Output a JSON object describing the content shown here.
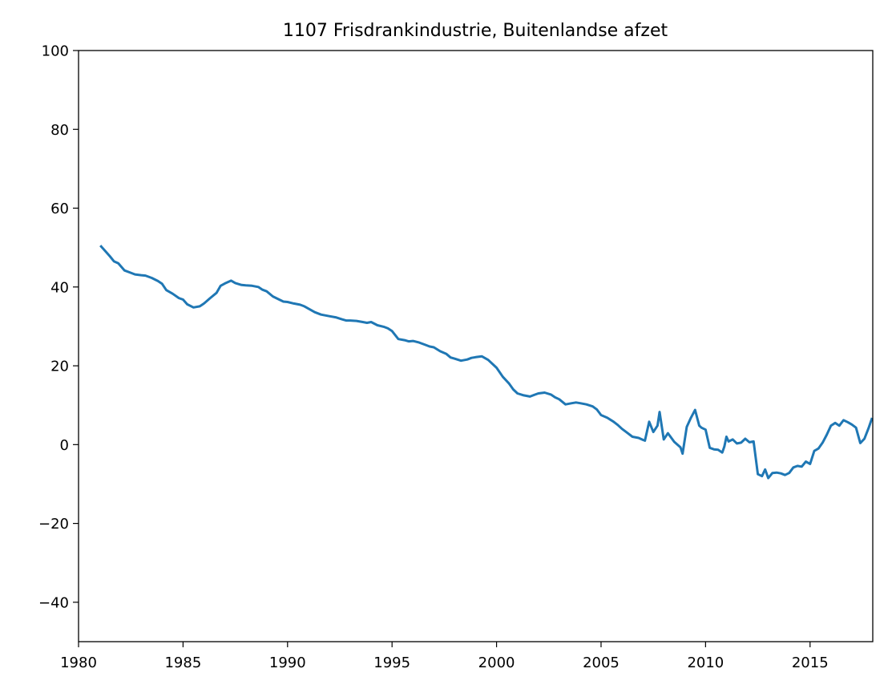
{
  "chart_data": {
    "type": "line",
    "title": "1107 Frisdrankindustrie, Buitenlandse afzet",
    "xlabel": "",
    "ylabel": "",
    "xlim": [
      1980,
      2018
    ],
    "ylim": [
      -50,
      100
    ],
    "xticks": [
      1980,
      1985,
      1990,
      1995,
      2000,
      2005,
      2010,
      2015
    ],
    "yticks": [
      100,
      80,
      60,
      40,
      20,
      0,
      -20,
      -40
    ],
    "ytick_labels": [
      "100",
      "80",
      "60",
      "40",
      "20",
      "0",
      "−20",
      "−40"
    ],
    "grid": false,
    "legend": "none",
    "series_color": "#1f77b4",
    "series": [
      {
        "x": [
          1981.08,
          1981.3,
          1981.5,
          1981.7,
          1981.9,
          1982.2,
          1982.5,
          1982.7,
          1983.0,
          1983.2,
          1983.5,
          1983.8,
          1984.0,
          1984.2,
          1984.5,
          1984.8,
          1985.0,
          1985.2,
          1985.5,
          1985.8,
          1986.0,
          1986.3,
          1986.6,
          1986.8,
          1987.0,
          1987.3,
          1987.5,
          1987.8,
          1988.0,
          1988.3,
          1988.6,
          1988.8,
          1989.0,
          1989.3,
          1989.6,
          1989.8,
          1990.0,
          1990.3,
          1990.6,
          1990.8,
          1991.0,
          1991.3,
          1991.6,
          1991.8,
          1992.0,
          1992.3,
          1992.6,
          1992.8,
          1993.0,
          1993.3,
          1993.6,
          1993.8,
          1994.0,
          1994.3,
          1994.6,
          1994.8,
          1995.0,
          1995.3,
          1995.6,
          1995.8,
          1996.0,
          1996.3,
          1996.6,
          1996.8,
          1997.0,
          1997.3,
          1997.6,
          1997.8,
          1998.0,
          1998.3,
          1998.6,
          1998.8,
          1999.0,
          1999.3,
          1999.6,
          1999.8,
          2000.0,
          2000.3,
          2000.6,
          2000.8,
          2001.0,
          2001.3,
          2001.6,
          2001.8,
          2002.0,
          2002.3,
          2002.6,
          2002.8,
          2003.0,
          2003.3,
          2003.6,
          2003.8,
          2004.0,
          2004.3,
          2004.6,
          2004.8,
          2005.0,
          2005.3,
          2005.6,
          2005.8,
          2006.0,
          2006.2,
          2006.5,
          2006.8,
          2007.0,
          2007.1,
          2007.3,
          2007.5,
          2007.7,
          2007.8,
          2008.0,
          2008.2,
          2008.5,
          2008.8,
          2008.9,
          2009.1,
          2009.3,
          2009.5,
          2009.7,
          2009.8,
          2010.0,
          2010.2,
          2010.4,
          2010.6,
          2010.8,
          2010.9,
          2011.0,
          2011.1,
          2011.3,
          2011.5,
          2011.7,
          2011.9,
          2012.1,
          2012.3,
          2012.5,
          2012.7,
          2012.85,
          2013.0,
          2013.2,
          2013.4,
          2013.6,
          2013.8,
          2014.0,
          2014.2,
          2014.4,
          2014.6,
          2014.8,
          2015.0,
          2015.2,
          2015.4,
          2015.6,
          2015.8,
          2016.0,
          2016.2,
          2016.4,
          2016.6,
          2016.8,
          2017.0,
          2017.2,
          2017.4,
          2017.6,
          2017.8,
          2017.95
        ],
        "y": [
          50.3,
          49.0,
          47.8,
          46.5,
          46.0,
          44.2,
          43.6,
          43.2,
          43.0,
          42.9,
          42.3,
          41.5,
          40.8,
          39.2,
          38.3,
          37.2,
          36.8,
          35.6,
          34.8,
          35.1,
          35.8,
          37.2,
          38.5,
          40.3,
          40.9,
          41.6,
          41.0,
          40.5,
          40.4,
          40.3,
          40.0,
          39.3,
          38.9,
          37.6,
          36.8,
          36.3,
          36.2,
          35.8,
          35.5,
          35.1,
          34.5,
          33.6,
          33.0,
          32.8,
          32.6,
          32.3,
          31.8,
          31.5,
          31.5,
          31.4,
          31.1,
          30.9,
          31.1,
          30.3,
          29.9,
          29.5,
          28.8,
          26.8,
          26.5,
          26.2,
          26.3,
          25.9,
          25.3,
          24.9,
          24.7,
          23.7,
          23.0,
          22.1,
          21.8,
          21.3,
          21.6,
          22.0,
          22.2,
          22.4,
          21.5,
          20.5,
          19.5,
          17.2,
          15.5,
          14.0,
          13.0,
          12.5,
          12.2,
          12.6,
          13.0,
          13.2,
          12.7,
          12.0,
          11.5,
          10.2,
          10.5,
          10.7,
          10.5,
          10.2,
          9.7,
          8.9,
          7.5,
          6.8,
          5.8,
          5.0,
          4.0,
          3.2,
          2.0,
          1.7,
          1.2,
          1.0,
          5.8,
          3.2,
          4.8,
          8.3,
          1.3,
          2.9,
          0.7,
          -0.7,
          -2.3,
          4.5,
          6.8,
          8.8,
          4.8,
          4.3,
          3.8,
          -0.8,
          -1.2,
          -1.3,
          -2.0,
          -0.5,
          2.0,
          0.8,
          1.3,
          0.3,
          0.5,
          1.5,
          0.6,
          0.8,
          -7.5,
          -8.0,
          -6.3,
          -8.5,
          -7.2,
          -7.1,
          -7.3,
          -7.7,
          -7.2,
          -5.8,
          -5.4,
          -5.6,
          -4.3,
          -4.9,
          -1.6,
          -1.0,
          0.5,
          2.5,
          4.8,
          5.5,
          4.8,
          6.2,
          5.7,
          5.1,
          4.3,
          0.4,
          1.5,
          4.2,
          6.5
        ]
      }
    ]
  }
}
